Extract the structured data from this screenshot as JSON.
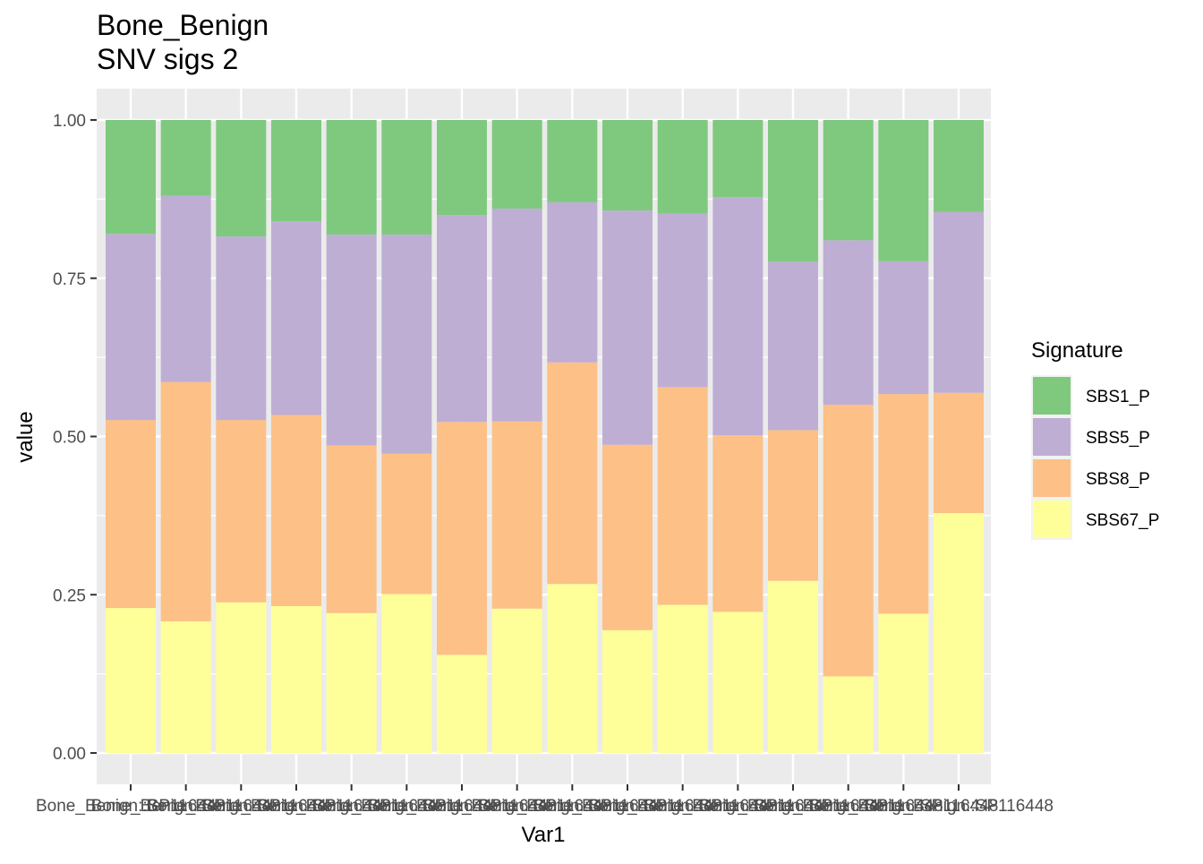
{
  "chart_data": {
    "type": "bar",
    "stacked": true,
    "title": "Bone_Benign",
    "subtitle": "SNV sigs 2",
    "xlabel": "Var1",
    "ylabel": "value",
    "ylim": [
      0,
      1
    ],
    "yticks": [
      "0.00",
      "0.25",
      "0.50",
      "0.75",
      "1.00"
    ],
    "grid": true,
    "legend": {
      "title": "Signature",
      "position": "right"
    },
    "categories": [
      "Bone_Benign::SP116448",
      "Bone_Benign::SP116448",
      "Bone_Benign::SP116448",
      "Bone_Benign::SP116448",
      "Bone_Benign::SP116448",
      "Bone_Benign::SP116448",
      "Bone_Benign::SP116448",
      "Bone_Benign::SP116448",
      "Bone_Benign::SP116448",
      "Bone_Benign::SP116448",
      "Bone_Benign::SP116448",
      "Bone_Benign::SP116448",
      "Bone_Benign::SP116448",
      "Bone_Benign::SP116448",
      "Bone_Benign::SP116448",
      "Bone_Benign::SP116448"
    ],
    "series": [
      {
        "name": "SBS1_P",
        "color": "#7FC97F",
        "values": [
          0.18,
          0.12,
          0.184,
          0.16,
          0.181,
          0.181,
          0.15,
          0.14,
          0.13,
          0.143,
          0.148,
          0.122,
          0.224,
          0.19,
          0.223,
          0.145
        ]
      },
      {
        "name": "SBS5_P",
        "color": "#BEAED4",
        "values": [
          0.294,
          0.294,
          0.29,
          0.306,
          0.333,
          0.346,
          0.327,
          0.336,
          0.253,
          0.37,
          0.274,
          0.376,
          0.266,
          0.26,
          0.21,
          0.286
        ]
      },
      {
        "name": "SBS8_P",
        "color": "#FDC086",
        "values": [
          0.297,
          0.378,
          0.288,
          0.302,
          0.265,
          0.222,
          0.368,
          0.296,
          0.35,
          0.293,
          0.344,
          0.279,
          0.238,
          0.429,
          0.347,
          0.19
        ]
      },
      {
        "name": "SBS67_P",
        "color": "#FFFF99",
        "values": [
          0.229,
          0.208,
          0.238,
          0.232,
          0.221,
          0.251,
          0.155,
          0.228,
          0.267,
          0.194,
          0.234,
          0.223,
          0.272,
          0.121,
          0.22,
          0.379
        ]
      }
    ]
  }
}
